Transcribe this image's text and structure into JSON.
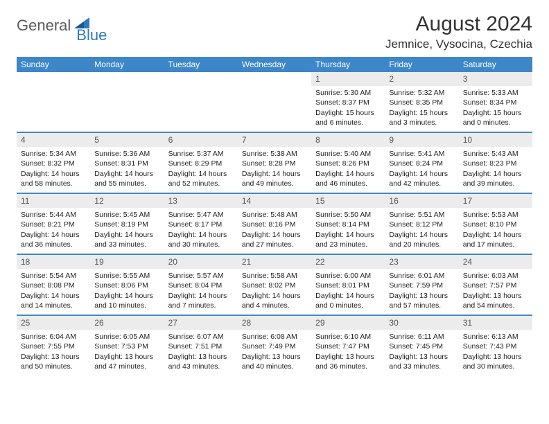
{
  "brand": {
    "part1": "General",
    "part2": "Blue"
  },
  "title": "August 2024",
  "location": "Jemnice, Vysocina, Czechia",
  "colors": {
    "header_bg": "#3d87c9",
    "daynum_bg": "#ececec",
    "text": "#222222",
    "brand_blue": "#2f78bd",
    "brand_gray": "#5a5a5a"
  },
  "weekdays": [
    "Sunday",
    "Monday",
    "Tuesday",
    "Wednesday",
    "Thursday",
    "Friday",
    "Saturday"
  ],
  "weeks": [
    [
      {
        "n": "",
        "sr": "",
        "ss": "",
        "dl": ""
      },
      {
        "n": "",
        "sr": "",
        "ss": "",
        "dl": ""
      },
      {
        "n": "",
        "sr": "",
        "ss": "",
        "dl": ""
      },
      {
        "n": "",
        "sr": "",
        "ss": "",
        "dl": ""
      },
      {
        "n": "1",
        "sr": "Sunrise: 5:30 AM",
        "ss": "Sunset: 8:37 PM",
        "dl": "Daylight: 15 hours and 6 minutes."
      },
      {
        "n": "2",
        "sr": "Sunrise: 5:32 AM",
        "ss": "Sunset: 8:35 PM",
        "dl": "Daylight: 15 hours and 3 minutes."
      },
      {
        "n": "3",
        "sr": "Sunrise: 5:33 AM",
        "ss": "Sunset: 8:34 PM",
        "dl": "Daylight: 15 hours and 0 minutes."
      }
    ],
    [
      {
        "n": "4",
        "sr": "Sunrise: 5:34 AM",
        "ss": "Sunset: 8:32 PM",
        "dl": "Daylight: 14 hours and 58 minutes."
      },
      {
        "n": "5",
        "sr": "Sunrise: 5:36 AM",
        "ss": "Sunset: 8:31 PM",
        "dl": "Daylight: 14 hours and 55 minutes."
      },
      {
        "n": "6",
        "sr": "Sunrise: 5:37 AM",
        "ss": "Sunset: 8:29 PM",
        "dl": "Daylight: 14 hours and 52 minutes."
      },
      {
        "n": "7",
        "sr": "Sunrise: 5:38 AM",
        "ss": "Sunset: 8:28 PM",
        "dl": "Daylight: 14 hours and 49 minutes."
      },
      {
        "n": "8",
        "sr": "Sunrise: 5:40 AM",
        "ss": "Sunset: 8:26 PM",
        "dl": "Daylight: 14 hours and 46 minutes."
      },
      {
        "n": "9",
        "sr": "Sunrise: 5:41 AM",
        "ss": "Sunset: 8:24 PM",
        "dl": "Daylight: 14 hours and 42 minutes."
      },
      {
        "n": "10",
        "sr": "Sunrise: 5:43 AM",
        "ss": "Sunset: 8:23 PM",
        "dl": "Daylight: 14 hours and 39 minutes."
      }
    ],
    [
      {
        "n": "11",
        "sr": "Sunrise: 5:44 AM",
        "ss": "Sunset: 8:21 PM",
        "dl": "Daylight: 14 hours and 36 minutes."
      },
      {
        "n": "12",
        "sr": "Sunrise: 5:45 AM",
        "ss": "Sunset: 8:19 PM",
        "dl": "Daylight: 14 hours and 33 minutes."
      },
      {
        "n": "13",
        "sr": "Sunrise: 5:47 AM",
        "ss": "Sunset: 8:17 PM",
        "dl": "Daylight: 14 hours and 30 minutes."
      },
      {
        "n": "14",
        "sr": "Sunrise: 5:48 AM",
        "ss": "Sunset: 8:16 PM",
        "dl": "Daylight: 14 hours and 27 minutes."
      },
      {
        "n": "15",
        "sr": "Sunrise: 5:50 AM",
        "ss": "Sunset: 8:14 PM",
        "dl": "Daylight: 14 hours and 23 minutes."
      },
      {
        "n": "16",
        "sr": "Sunrise: 5:51 AM",
        "ss": "Sunset: 8:12 PM",
        "dl": "Daylight: 14 hours and 20 minutes."
      },
      {
        "n": "17",
        "sr": "Sunrise: 5:53 AM",
        "ss": "Sunset: 8:10 PM",
        "dl": "Daylight: 14 hours and 17 minutes."
      }
    ],
    [
      {
        "n": "18",
        "sr": "Sunrise: 5:54 AM",
        "ss": "Sunset: 8:08 PM",
        "dl": "Daylight: 14 hours and 14 minutes."
      },
      {
        "n": "19",
        "sr": "Sunrise: 5:55 AM",
        "ss": "Sunset: 8:06 PM",
        "dl": "Daylight: 14 hours and 10 minutes."
      },
      {
        "n": "20",
        "sr": "Sunrise: 5:57 AM",
        "ss": "Sunset: 8:04 PM",
        "dl": "Daylight: 14 hours and 7 minutes."
      },
      {
        "n": "21",
        "sr": "Sunrise: 5:58 AM",
        "ss": "Sunset: 8:02 PM",
        "dl": "Daylight: 14 hours and 4 minutes."
      },
      {
        "n": "22",
        "sr": "Sunrise: 6:00 AM",
        "ss": "Sunset: 8:01 PM",
        "dl": "Daylight: 14 hours and 0 minutes."
      },
      {
        "n": "23",
        "sr": "Sunrise: 6:01 AM",
        "ss": "Sunset: 7:59 PM",
        "dl": "Daylight: 13 hours and 57 minutes."
      },
      {
        "n": "24",
        "sr": "Sunrise: 6:03 AM",
        "ss": "Sunset: 7:57 PM",
        "dl": "Daylight: 13 hours and 54 minutes."
      }
    ],
    [
      {
        "n": "25",
        "sr": "Sunrise: 6:04 AM",
        "ss": "Sunset: 7:55 PM",
        "dl": "Daylight: 13 hours and 50 minutes."
      },
      {
        "n": "26",
        "sr": "Sunrise: 6:05 AM",
        "ss": "Sunset: 7:53 PM",
        "dl": "Daylight: 13 hours and 47 minutes."
      },
      {
        "n": "27",
        "sr": "Sunrise: 6:07 AM",
        "ss": "Sunset: 7:51 PM",
        "dl": "Daylight: 13 hours and 43 minutes."
      },
      {
        "n": "28",
        "sr": "Sunrise: 6:08 AM",
        "ss": "Sunset: 7:49 PM",
        "dl": "Daylight: 13 hours and 40 minutes."
      },
      {
        "n": "29",
        "sr": "Sunrise: 6:10 AM",
        "ss": "Sunset: 7:47 PM",
        "dl": "Daylight: 13 hours and 36 minutes."
      },
      {
        "n": "30",
        "sr": "Sunrise: 6:11 AM",
        "ss": "Sunset: 7:45 PM",
        "dl": "Daylight: 13 hours and 33 minutes."
      },
      {
        "n": "31",
        "sr": "Sunrise: 6:13 AM",
        "ss": "Sunset: 7:43 PM",
        "dl": "Daylight: 13 hours and 30 minutes."
      }
    ]
  ]
}
